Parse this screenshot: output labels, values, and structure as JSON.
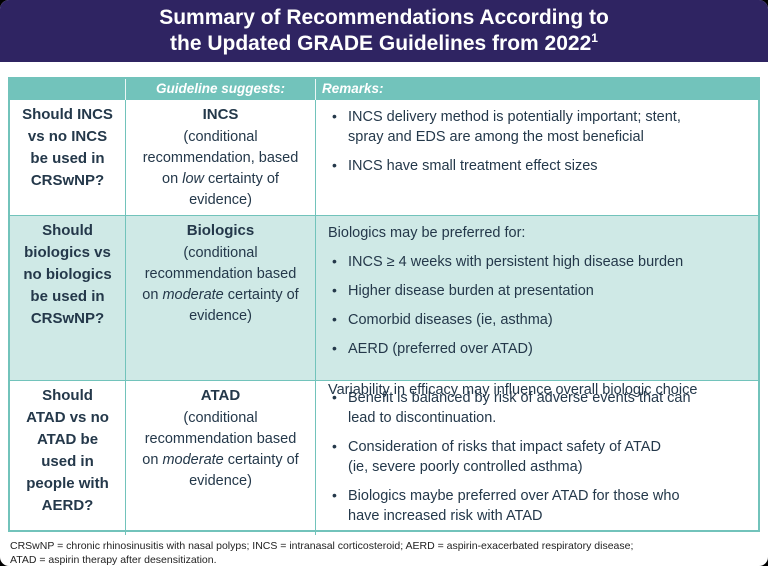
{
  "header": {
    "title_line1": "Summary of Recommendations According to",
    "title_line2": "the Updated GRADE Guidelines from 2022",
    "title_superscript": "1"
  },
  "table": {
    "bullet_char": "•",
    "headers": {
      "question": "",
      "guideline": "Guideline suggests:",
      "remarks": "Remarks:"
    },
    "rows": [
      {
        "question_lines": [
          "Should INCS",
          "vs no INCS",
          "be used in",
          "CRSwNP?"
        ],
        "suggestion": {
          "name": "INCS",
          "cond_pre": "(conditional recommendation, based on ",
          "cond_emphasis": "low",
          "cond_post": " certainty of evidence)"
        },
        "remarks": [
          {
            "bullet": true,
            "lines": [
              "INCS delivery method is potentially important; stent,",
              "spray and EDS are among the most beneficial"
            ]
          },
          {
            "bullet": true,
            "lines": [
              "INCS have small treatment effect sizes"
            ]
          }
        ]
      },
      {
        "question_lines": [
          "Should",
          "biologics vs",
          "no biologics",
          "be used in",
          "CRSwNP?"
        ],
        "suggestion": {
          "name": "Biologics",
          "cond_pre": "(conditional recommendation based on ",
          "cond_emphasis": "moderate",
          "cond_post": " certainty of evidence)"
        },
        "remarks": [
          {
            "bullet": false,
            "lines": [
              "Biologics may be preferred for:"
            ]
          },
          {
            "bullet": true,
            "lines": [
              "INCS ≥ 4 weeks with persistent high disease burden"
            ]
          },
          {
            "bullet": true,
            "lines": [
              "Higher disease burden at presentation"
            ]
          },
          {
            "bullet": true,
            "lines": [
              "Comorbid diseases (ie, asthma)"
            ]
          },
          {
            "bullet": true,
            "lines": [
              "AERD (preferred over ATAD)"
            ]
          },
          {
            "bullet": false,
            "spacer": true,
            "lines": []
          },
          {
            "bullet": false,
            "lines": [
              "Variability in efficacy may influence overall biologic choice"
            ]
          }
        ]
      },
      {
        "question_lines": [
          "Should",
          "ATAD vs no",
          "ATAD be",
          "used in",
          "people with",
          "AERD?"
        ],
        "suggestion": {
          "name": "ATAD",
          "cond_pre": "(conditional recommendation based on ",
          "cond_emphasis": "moderate",
          "cond_post": " certainty of evidence)"
        },
        "remarks": [
          {
            "bullet": true,
            "lines": [
              "Benefit is balanced by risk of adverse events that can",
              "lead to discontinuation."
            ]
          },
          {
            "bullet": true,
            "lines": [
              "Consideration of risks that impact safety of ATAD",
              "(ie, severe poorly controlled asthma)"
            ]
          },
          {
            "bullet": true,
            "lines": [
              "Biologics maybe preferred over ATAD for those who",
              "have increased risk with ATAD"
            ]
          }
        ]
      }
    ]
  },
  "footnote": {
    "line1": "CRSwNP = chronic rhinosinusitis with nasal polyps; INCS = intranasal corticosteroid; AERD = aspirin-exacerbated respiratory disease;",
    "line2": "ATAD = aspirin therapy after desensitization."
  },
  "colors": {
    "banner_purple": "#2f2462",
    "header_teal": "#72c3bb",
    "row_highlight_teal": "#cfe9e6",
    "text_navy": "#24384a"
  }
}
